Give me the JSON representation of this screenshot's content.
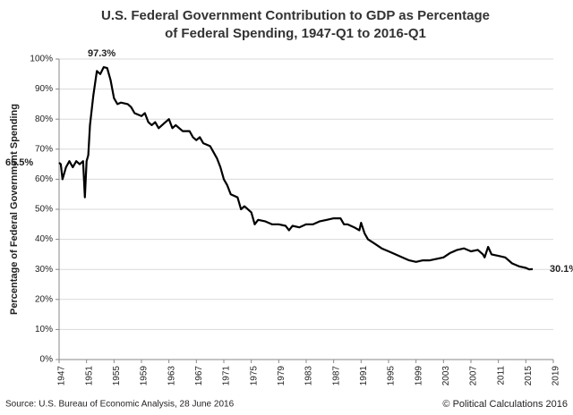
{
  "chart_data": {
    "type": "line",
    "title": "U.S. Federal Government Contribution to GDP as Percentage",
    "subtitle": "of Federal Spending, 1947-Q1 to 2016-Q1",
    "y_label": "Percentage of Federal Government Spending",
    "source": "Source: U.S. Bureau of Economic Analysis, 28 June 2016",
    "credit": "© Political Calculations 2016",
    "annotations": [
      "97.3%",
      "65.5%",
      "30.1%"
    ],
    "xlim": [
      1947,
      2019
    ],
    "xticks": [
      1947,
      1951,
      1955,
      1959,
      1963,
      1967,
      1971,
      1975,
      1979,
      1983,
      1987,
      1991,
      1995,
      1999,
      2003,
      2007,
      2011,
      2015,
      2019
    ],
    "ylim": [
      0,
      100
    ],
    "yticks": [
      {
        "value": 0,
        "label": "0%"
      },
      {
        "value": 10,
        "label": "10%"
      },
      {
        "value": 20,
        "label": "20%"
      },
      {
        "value": 30,
        "label": "30%"
      },
      {
        "value": 40,
        "label": "40%"
      },
      {
        "value": 50,
        "label": "50%"
      },
      {
        "value": 60,
        "label": "60%"
      },
      {
        "value": 70,
        "label": "70%"
      },
      {
        "value": 80,
        "label": "80%"
      },
      {
        "value": 90,
        "label": "90%"
      },
      {
        "value": 100,
        "label": "100%"
      }
    ],
    "grid": true,
    "color": "#000000",
    "x": [
      1947.0,
      1947.25,
      1947.5,
      1948.0,
      1948.5,
      1949.0,
      1949.5,
      1950.0,
      1950.5,
      1950.75,
      1951.0,
      1951.25,
      1951.5,
      1952.0,
      1952.5,
      1953.0,
      1953.5,
      1954.0,
      1954.5,
      1955.0,
      1955.5,
      1956.0,
      1957.0,
      1957.5,
      1958.0,
      1959.0,
      1959.5,
      1960.0,
      1960.5,
      1961.0,
      1961.5,
      1962.0,
      1962.5,
      1963.0,
      1963.5,
      1964.0,
      1964.5,
      1965.0,
      1966.0,
      1966.5,
      1967.0,
      1967.5,
      1968.0,
      1969.0,
      1969.5,
      1970.0,
      1970.5,
      1971.0,
      1971.5,
      1972.0,
      1973.0,
      1973.5,
      1974.0,
      1975.0,
      1975.5,
      1976.0,
      1977.0,
      1978.0,
      1979.0,
      1980.0,
      1980.5,
      1981.0,
      1982.0,
      1983.0,
      1984.0,
      1985.0,
      1986.0,
      1987.0,
      1988.0,
      1988.5,
      1989.0,
      1990.0,
      1990.75,
      1991.0,
      1991.5,
      1992.0,
      1993.0,
      1994.0,
      1995.0,
      1996.0,
      1997.0,
      1998.0,
      1999.0,
      2000.0,
      2001.0,
      2002.0,
      2003.0,
      2004.0,
      2005.0,
      2006.0,
      2007.0,
      2008.0,
      2008.75,
      2009.0,
      2009.5,
      2010.0,
      2011.0,
      2012.0,
      2013.0,
      2014.0,
      2015.0,
      2015.5,
      2016.0
    ],
    "values": [
      65.5,
      65,
      60,
      64,
      66,
      64,
      66,
      65,
      66,
      54,
      66,
      68,
      78,
      88,
      96,
      95,
      97.3,
      97,
      93,
      87,
      85,
      85.5,
      85,
      84,
      82,
      81,
      82,
      79,
      78,
      79,
      77,
      78,
      79,
      80,
      77,
      78,
      77,
      76,
      76,
      74,
      73,
      74,
      72,
      71,
      69,
      67,
      64,
      60,
      58,
      55,
      54,
      50,
      51,
      49,
      45,
      46.5,
      46,
      45,
      45,
      44.5,
      43,
      44.5,
      44,
      45,
      45,
      46,
      46.5,
      47,
      47,
      45,
      45,
      44,
      43,
      45.5,
      42,
      40,
      38.5,
      37,
      36,
      35,
      34,
      33,
      32.5,
      33,
      33,
      33.5,
      34,
      35.5,
      36.5,
      37,
      36,
      36.5,
      35,
      34,
      37.5,
      35,
      34.5,
      34,
      32,
      31,
      30.5,
      30,
      30.1
    ]
  }
}
